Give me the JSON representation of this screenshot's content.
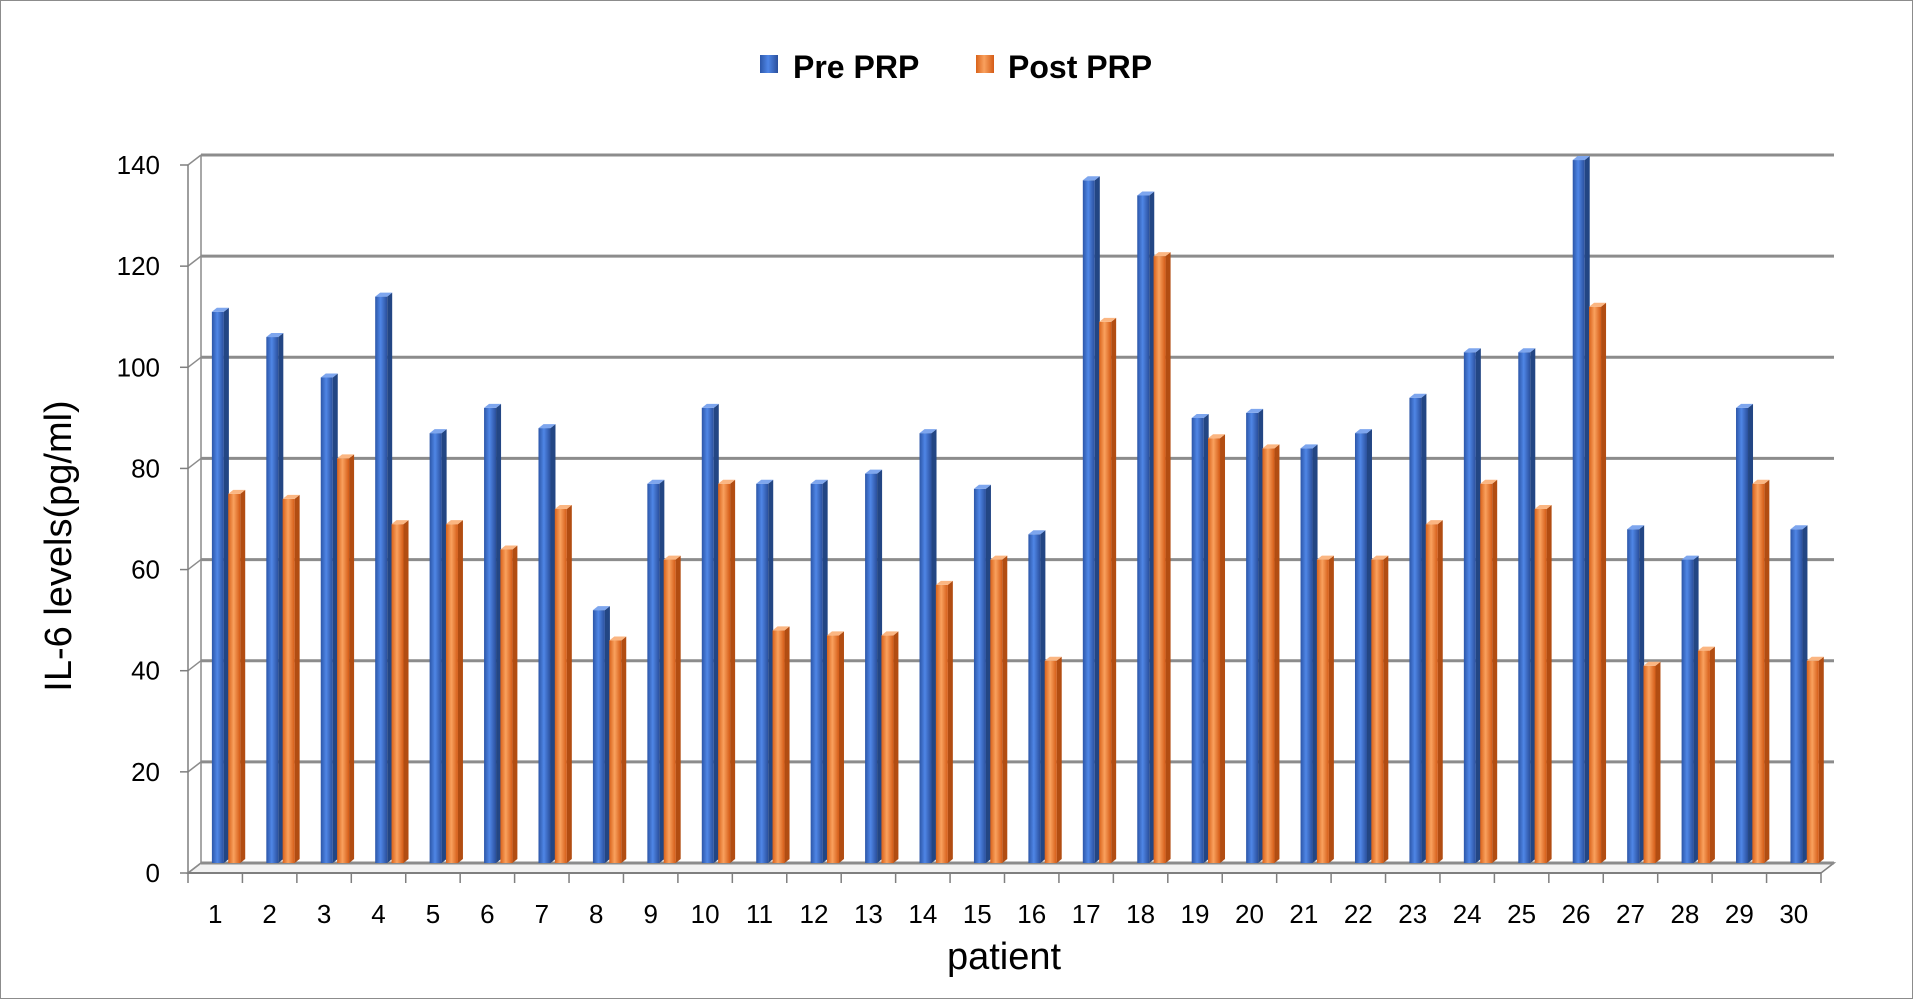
{
  "chart_data": {
    "type": "bar",
    "title": "",
    "xlabel": "patient",
    "ylabel": "IL-6 levels(pg/ml)",
    "ylim": [
      0,
      140
    ],
    "yticks": [
      0,
      20,
      40,
      60,
      80,
      100,
      120,
      140
    ],
    "grid": true,
    "legend_position": "top-center",
    "categories": [
      "1",
      "2",
      "3",
      "4",
      "5",
      "6",
      "7",
      "8",
      "9",
      "10",
      "11",
      "12",
      "13",
      "14",
      "15",
      "16",
      "17",
      "18",
      "19",
      "20",
      "21",
      "22",
      "23",
      "24",
      "25",
      "26",
      "27",
      "28",
      "29",
      "30"
    ],
    "series": [
      {
        "name": "Pre PRP",
        "color": "#3b6fcf",
        "values": [
          109,
          104,
          96,
          112,
          85,
          90,
          86,
          50,
          75,
          90,
          75,
          75,
          77,
          85,
          74,
          65,
          135,
          132,
          88,
          89,
          82,
          85,
          92,
          101,
          101,
          139,
          66,
          60,
          90,
          66
        ]
      },
      {
        "name": "Post PRP",
        "color": "#f07a2a",
        "values": [
          73,
          72,
          80,
          67,
          67,
          62,
          70,
          44,
          60,
          75,
          46,
          45,
          45,
          55,
          60,
          40,
          107,
          120,
          84,
          82,
          60,
          60,
          67,
          75,
          70,
          110,
          39,
          42,
          75,
          40
        ]
      }
    ]
  }
}
